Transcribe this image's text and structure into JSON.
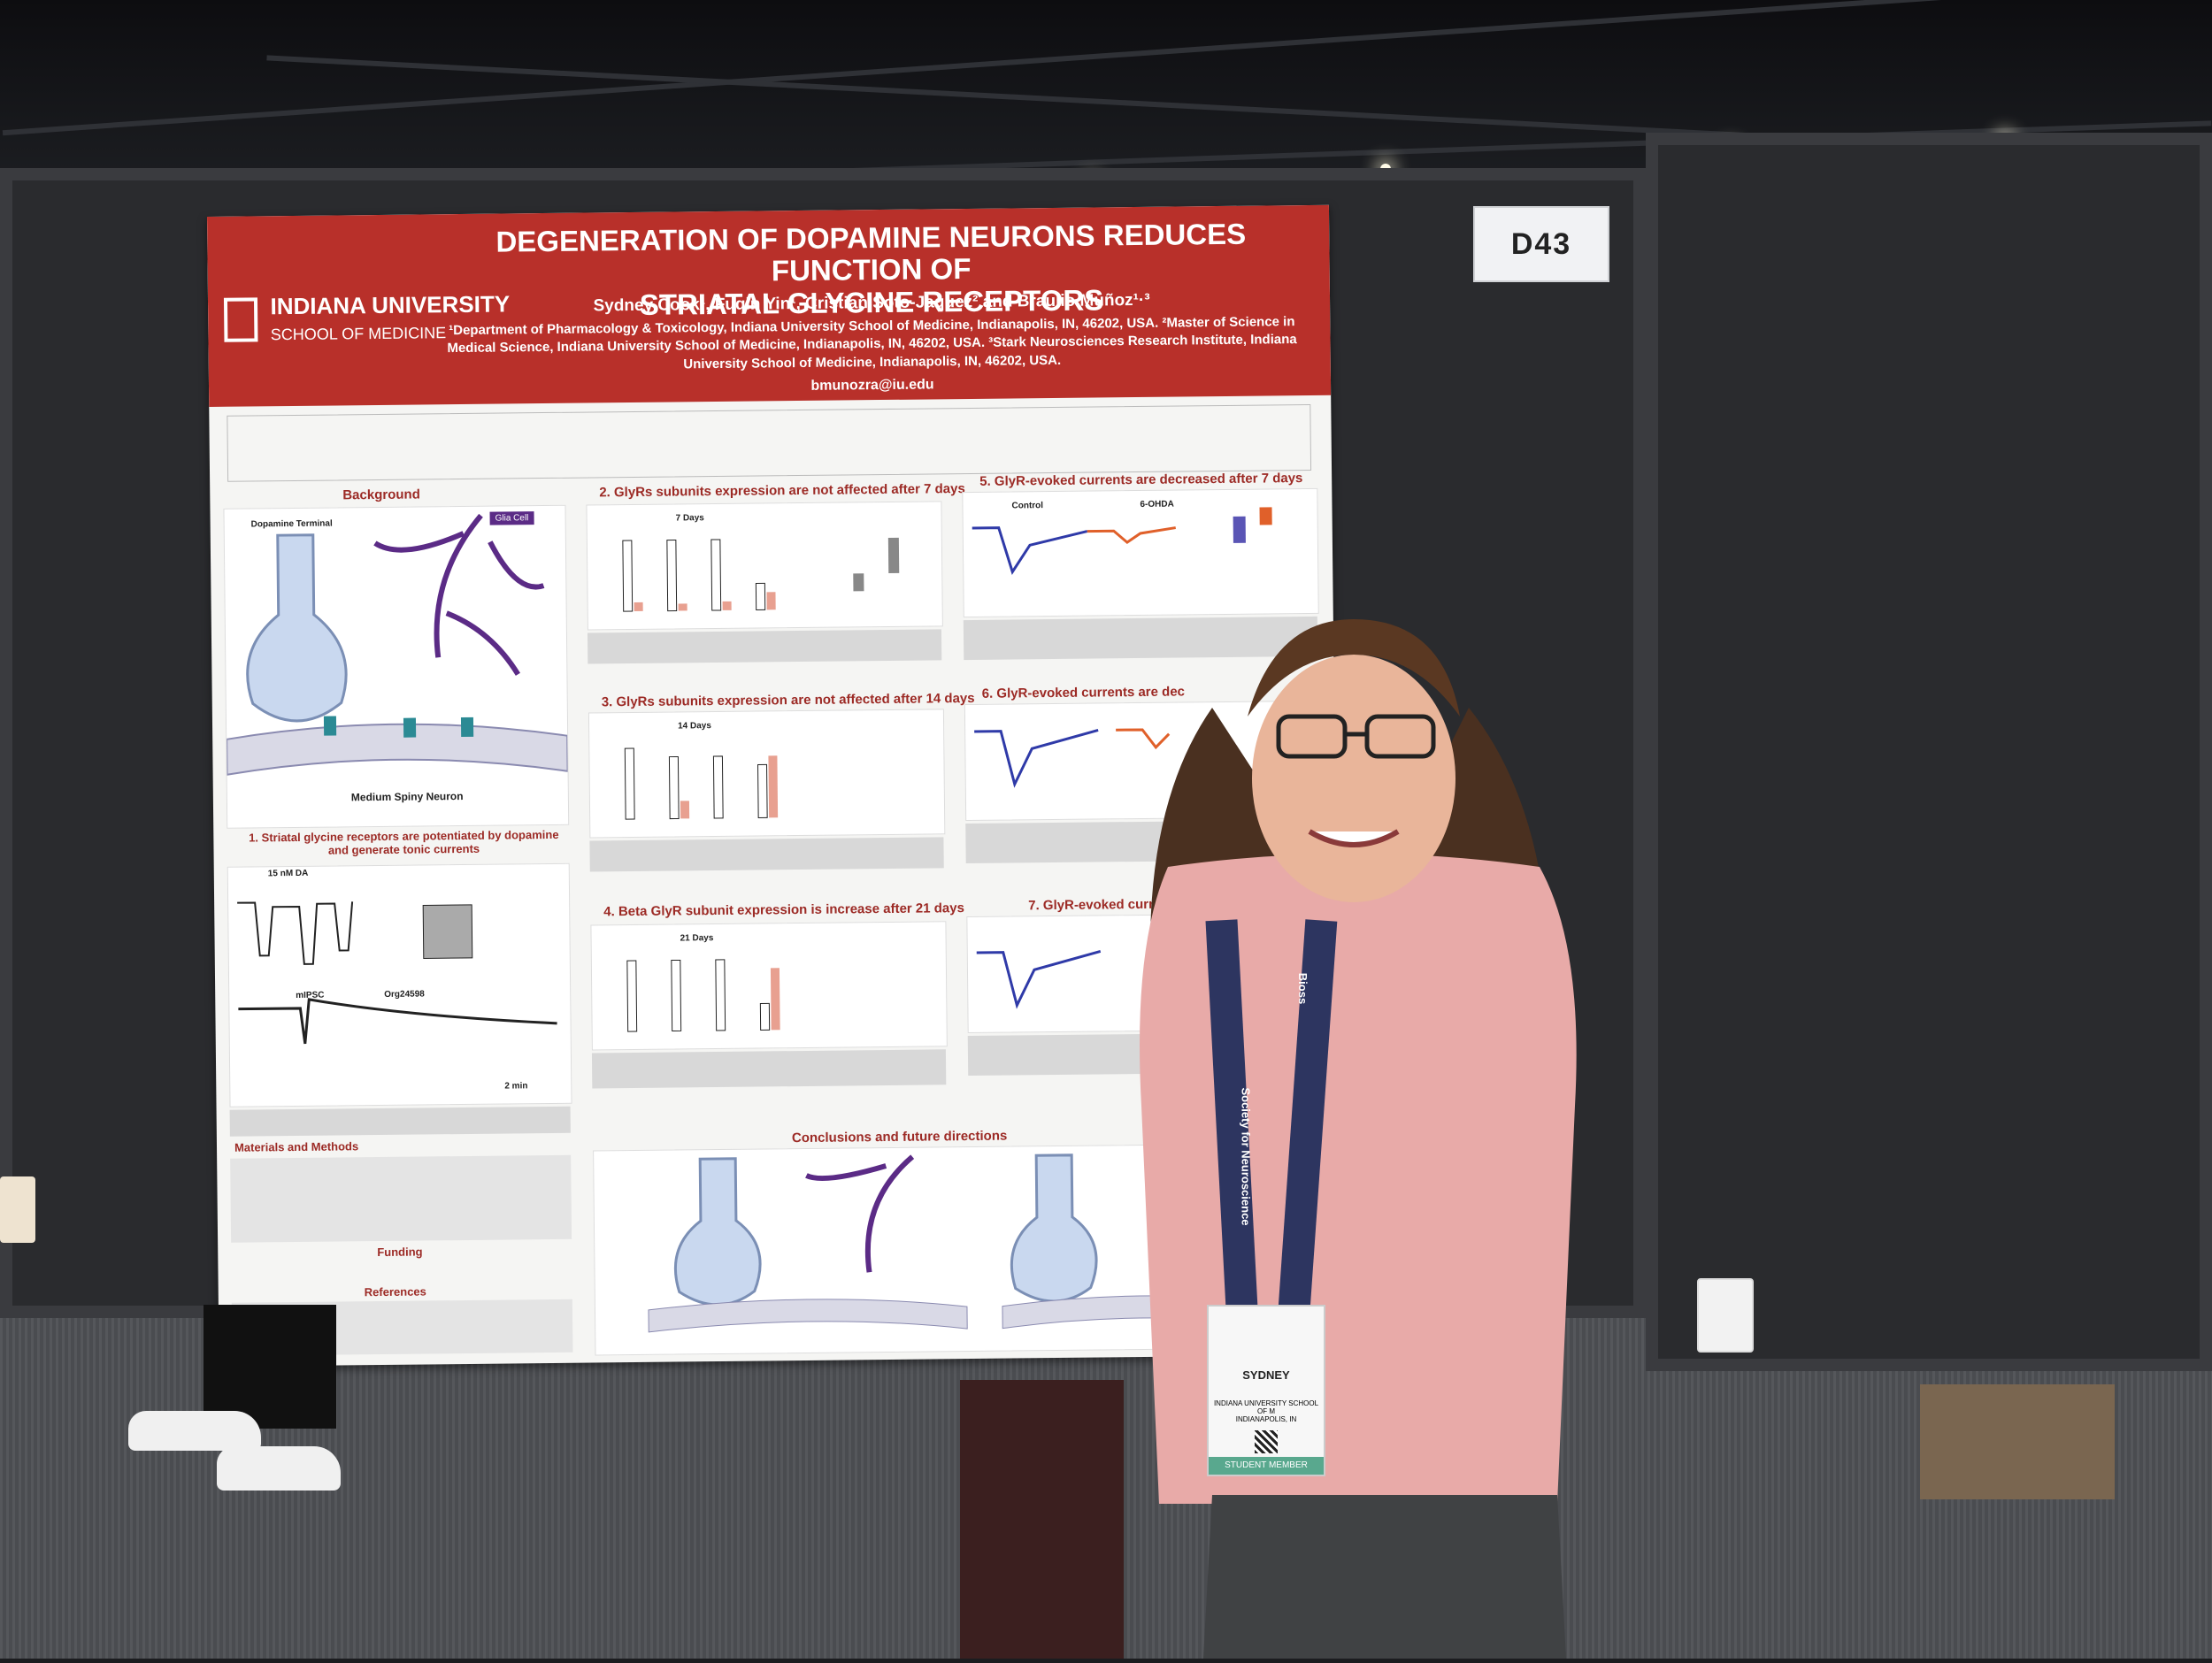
{
  "booth": {
    "number": "D43"
  },
  "poster": {
    "institution": "INDIANA UNIVERSITY",
    "school": "SCHOOL OF MEDICINE",
    "title_line1": "DEGENERATION OF DOPAMINE NEURONS REDUCES FUNCTION OF",
    "title_line2": "STRIATAL GLYCINE RECEPTORS",
    "authors": "Sydney Cook¹, Fuqin Yin¹, Cristian Soto-Jaquez² and Braulio Muñoz¹·³",
    "affiliations": "¹Department of Pharmacology & Toxicology, Indiana University School of Medicine, Indianapolis, IN, 46202, USA. ²Master of Science in Medical Science, Indiana University School of Medicine, Indianapolis, IN, 46202, USA. ³Stark Neurosciences Research Institute, Indiana University School of Medicine, Indianapolis, IN, 46202, USA.",
    "email": "bmunozra@iu.edu",
    "sections": {
      "background": "Background",
      "s1": "1. Striatal glycine receptors are potentiated by dopamine and generate tonic currents",
      "materials": "Materials and Methods",
      "funding": "Funding",
      "references": "References",
      "s2": "2. GlyRs subunits expression are not affected after 7 days",
      "s3": "3. GlyRs subunits expression are not affected after 14 days",
      "s4": "4. Beta GlyR subunit expression is increase after 21 days",
      "s5": "5. GlyR-evoked currents are decreased after 7 days",
      "s6": "6. GlyR-evoked currents are dec",
      "s7": "7. GlyR-evoked curren",
      "conclusions": "Conclusions and future directions"
    },
    "labels": {
      "glia_cell": "Glia Cell",
      "dopamine_terminal": "Dopamine Terminal",
      "medium_spiny_neuron": "Medium Spiny Neuron",
      "days_7": "7 Days",
      "days_14": "14 Days",
      "days_21": "21 Days",
      "control": "Control",
      "ohda": "6-OHDA",
      "nm_da": "15 nM DA",
      "mipsc": "mIPSC",
      "org": "Org24598",
      "time": "2 min"
    }
  },
  "badge": {
    "name": "SYDNEY",
    "affiliation": "INDIANA UNIVERSITY SCHOOL OF M",
    "city": "INDIANAPOLIS, IN",
    "ribbon": "STUDENT MEMBER"
  },
  "lanyard": {
    "text": "Society for Neuroscience",
    "sponsor": "Bioss"
  }
}
